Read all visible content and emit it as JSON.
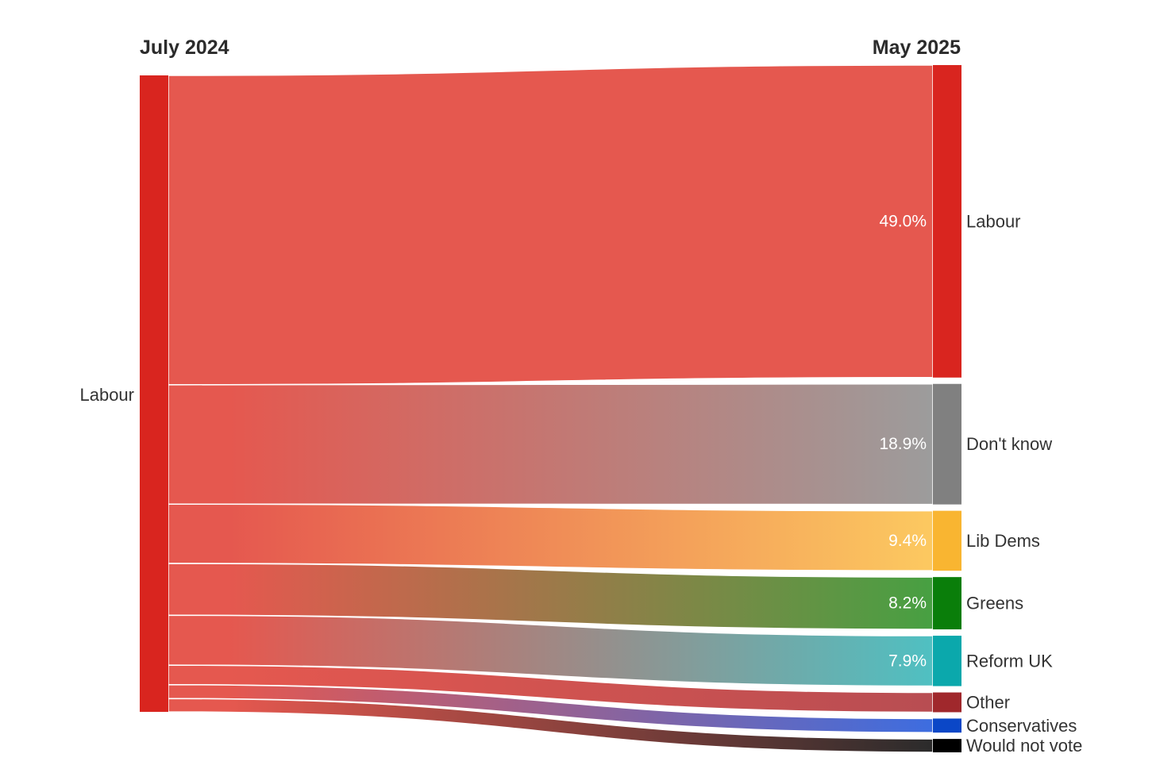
{
  "chart_data": {
    "type": "sankey",
    "source_title": "July 2024",
    "target_title": "May 2025",
    "source": {
      "label": "Labour",
      "color": "#d9251f"
    },
    "flows": [
      {
        "target": "Labour",
        "value": 49.0,
        "value_label": "49.0%",
        "color": "#d9251f",
        "flow_color": "#e5584f"
      },
      {
        "target": "Don't know",
        "value": 18.9,
        "value_label": "18.9%",
        "color": "#808080",
        "flow_color": "#9c9c9c"
      },
      {
        "target": "Lib Dems",
        "value": 9.4,
        "value_label": "9.4%",
        "color": "#f9b531",
        "flow_color": "#fcc960"
      },
      {
        "target": "Greens",
        "value": 8.2,
        "value_label": "8.2%",
        "color": "#0a7e0a",
        "flow_color": "#47a042"
      },
      {
        "target": "Reform UK",
        "value": 7.9,
        "value_label": "7.9%",
        "color": "#0ba8ac",
        "flow_color": "#4fc0c2"
      },
      {
        "target": "Other",
        "value": 3.1,
        "value_label": "",
        "color": "#a0282c",
        "flow_color": "#b84d52"
      },
      {
        "target": "Conservatives",
        "value": 2.2,
        "value_label": "",
        "color": "#0b47c7",
        "flow_color": "#3d6de0"
      },
      {
        "target": "Would not vote",
        "value": 2.1,
        "value_label": "",
        "color": "#000000",
        "flow_color": "#2b2b2b"
      }
    ]
  }
}
